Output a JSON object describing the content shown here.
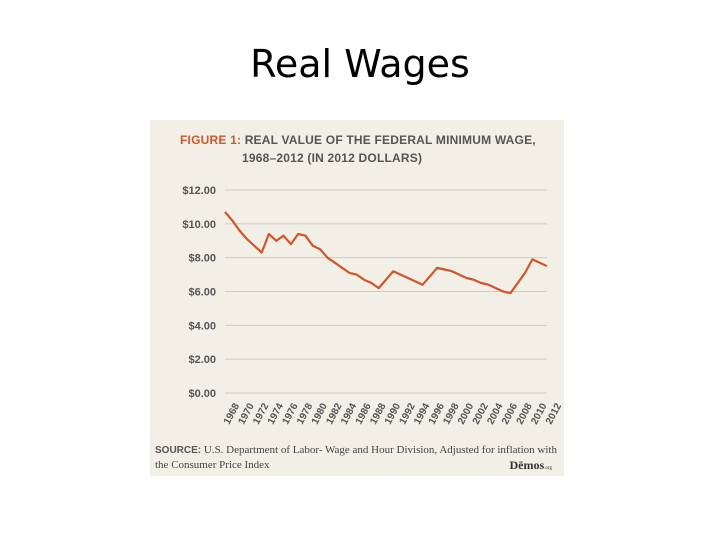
{
  "slide": {
    "title": "Real Wages"
  },
  "figure": {
    "label": "FIGURE 1:",
    "title_line1": "REAL VALUE OF THE FEDERAL MINIMUM WAGE,",
    "title_line2": "1968–2012 (IN 2012 DOLLARS)",
    "source_label": "SOURCE:",
    "source_text": " U.S. Department of Labor- Wage and Hour Division, Adjusted for inflation with the Consumer Price Index",
    "brand": "Dēmos",
    "brand_suffix": ".org"
  },
  "colors": {
    "line": "#d2552b",
    "panel": "#f1efe6",
    "grid": "#cfcbbf",
    "text": "#555555"
  },
  "chart_data": {
    "type": "line",
    "ylim": [
      0,
      12
    ],
    "yticks": [
      "$0.00",
      "$2.00",
      "$4.00",
      "$6.00",
      "$8.00",
      "$10.00",
      "$12.00"
    ],
    "ytick_values": [
      0,
      2,
      4,
      6,
      8,
      10,
      12
    ],
    "xticks": [
      "1968",
      "1970",
      "1972",
      "1974",
      "1976",
      "1978",
      "1980",
      "1982",
      "1984",
      "1986",
      "1988",
      "1990",
      "1992",
      "1994",
      "1996",
      "1998",
      "2000",
      "2002",
      "2004",
      "2006",
      "2008",
      "2010",
      "2012"
    ],
    "grid": true,
    "series": [
      {
        "x": [
          1968,
          1969,
          1970,
          1971,
          1972,
          1973,
          1974,
          1975,
          1976,
          1977,
          1978,
          1979,
          1980,
          1981,
          1982,
          1983,
          1984,
          1985,
          1986,
          1987,
          1988,
          1989,
          1990,
          1991,
          1992,
          1993,
          1994,
          1995,
          1996,
          1997,
          1998,
          1999,
          2000,
          2001,
          2002,
          2003,
          2004,
          2005,
          2006,
          2007,
          2008,
          2009,
          2010,
          2011,
          2012
        ],
        "y": [
          10.7,
          10.2,
          9.6,
          9.1,
          8.7,
          8.3,
          9.4,
          9.0,
          9.3,
          8.8,
          9.4,
          9.3,
          8.7,
          8.5,
          8.0,
          7.7,
          7.4,
          7.1,
          7.0,
          6.7,
          6.5,
          6.2,
          6.7,
          7.2,
          7.0,
          6.8,
          6.6,
          6.4,
          6.9,
          7.4,
          7.3,
          7.2,
          7.0,
          6.8,
          6.7,
          6.5,
          6.4,
          6.2,
          6.0,
          5.9,
          6.5,
          7.1,
          7.9,
          7.7,
          7.5
        ]
      }
    ]
  }
}
